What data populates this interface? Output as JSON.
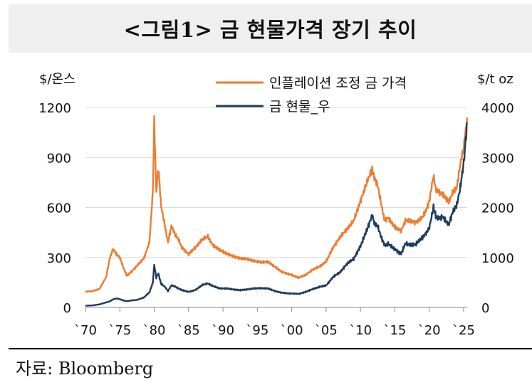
{
  "title": "<그림1> 금 현물가격 장기 추이",
  "source": "자료: Bloomberg",
  "chart_data": {
    "type": "line",
    "left_axis": {
      "unit": "$/온스",
      "range": [
        0,
        1200
      ],
      "ticks": [
        "0",
        "300",
        "600",
        "900",
        "1200"
      ]
    },
    "right_axis": {
      "unit": "$/t oz",
      "range": [
        0,
        4000
      ],
      "ticks": [
        "0",
        "1000",
        "2000",
        "3000",
        "4000"
      ]
    },
    "x_axis": {
      "range": [
        1970,
        2025.5
      ],
      "ticks": [
        "`70",
        "`75",
        "`80",
        "`85",
        "`90",
        "`95",
        "`00",
        "`05",
        "`10",
        "`15",
        "`20",
        "`25"
      ]
    },
    "grid": true,
    "legend_placement": "top",
    "series": [
      {
        "name": "인플레이션 조정 금 가격",
        "axis": "left",
        "color": "#ED7D31",
        "x": [
          1970,
          1971,
          1972,
          1973,
          1973.5,
          1974,
          1974.5,
          1975,
          1975.5,
          1976,
          1976.7,
          1977.5,
          1978.5,
          1979.3,
          1979.8,
          1980.0,
          1980.3,
          1980.6,
          1981.0,
          1981.5,
          1982.0,
          1982.5,
          1983.0,
          1983.5,
          1984.0,
          1985.0,
          1986.0,
          1987.0,
          1987.8,
          1988.5,
          1989.5,
          1990.5,
          1991.5,
          1992.5,
          1993.5,
          1994.5,
          1995.5,
          1996.5,
          1997.5,
          1998.5,
          1999.5,
          2000.0,
          2001.0,
          2002.0,
          2003.0,
          2004.0,
          2005.0,
          2006.0,
          2007.0,
          2008.0,
          2009.0,
          2010.0,
          2011.0,
          2011.7,
          2012.0,
          2012.5,
          2013.0,
          2013.5,
          2014.0,
          2015.0,
          2015.9,
          2016.5,
          2017.0,
          2018.0,
          2019.0,
          2019.6,
          2020.0,
          2020.6,
          2021.0,
          2022.0,
          2022.8,
          2023.5,
          2024.0,
          2024.5,
          2025.0,
          2025.5
        ],
        "y": [
          95,
          98,
          110,
          180,
          290,
          350,
          320,
          300,
          240,
          190,
          215,
          250,
          295,
          390,
          700,
          1120,
          690,
          840,
          610,
          500,
          390,
          490,
          440,
          410,
          360,
          320,
          360,
          410,
          425,
          375,
          345,
          325,
          305,
          295,
          290,
          280,
          270,
          275,
          245,
          215,
          200,
          195,
          178,
          195,
          225,
          245,
          275,
          360,
          420,
          470,
          520,
          640,
          760,
          830,
          780,
          730,
          620,
          520,
          540,
          480,
          460,
          520,
          520,
          510,
          540,
          590,
          640,
          790,
          700,
          680,
          630,
          700,
          720,
          860,
          960,
          1140
        ]
      },
      {
        "name": "금 현물_우",
        "axis": "right",
        "color": "#1F3B5E",
        "x": [
          1970,
          1971,
          1972,
          1973,
          1973.5,
          1974,
          1974.5,
          1975,
          1975.5,
          1976,
          1976.7,
          1977.5,
          1978.5,
          1979.3,
          1979.8,
          1980.0,
          1980.3,
          1980.6,
          1981.0,
          1981.5,
          1982.0,
          1982.5,
          1983.0,
          1983.5,
          1984.0,
          1985.0,
          1986.0,
          1987.0,
          1987.8,
          1988.5,
          1989.5,
          1990.5,
          1991.5,
          1992.5,
          1993.5,
          1994.5,
          1995.5,
          1996.5,
          1997.5,
          1998.5,
          1999.5,
          2000.0,
          2001.0,
          2002.0,
          2003.0,
          2004.0,
          2005.0,
          2006.0,
          2007.0,
          2008.0,
          2009.0,
          2010.0,
          2011.0,
          2011.7,
          2012.0,
          2012.5,
          2013.0,
          2013.5,
          2014.0,
          2015.0,
          2015.9,
          2016.5,
          2017.0,
          2018.0,
          2019.0,
          2019.6,
          2020.0,
          2020.6,
          2021.0,
          2022.0,
          2022.8,
          2023.5,
          2024.0,
          2024.5,
          2025.0,
          2025.5
        ],
        "y": [
          35,
          40,
          60,
          100,
          120,
          160,
          180,
          165,
          140,
          125,
          140,
          150,
          200,
          300,
          500,
          850,
          600,
          680,
          470,
          420,
          330,
          440,
          420,
          380,
          350,
          310,
          350,
          450,
          480,
          430,
          380,
          380,
          360,
          345,
          360,
          380,
          385,
          380,
          330,
          295,
          280,
          280,
          270,
          310,
          365,
          410,
          440,
          610,
          700,
          870,
          970,
          1230,
          1580,
          1850,
          1680,
          1620,
          1400,
          1250,
          1270,
          1160,
          1070,
          1280,
          1260,
          1260,
          1400,
          1500,
          1600,
          2000,
          1800,
          1800,
          1650,
          1950,
          2050,
          2400,
          2900,
          3700
        ]
      }
    ]
  }
}
